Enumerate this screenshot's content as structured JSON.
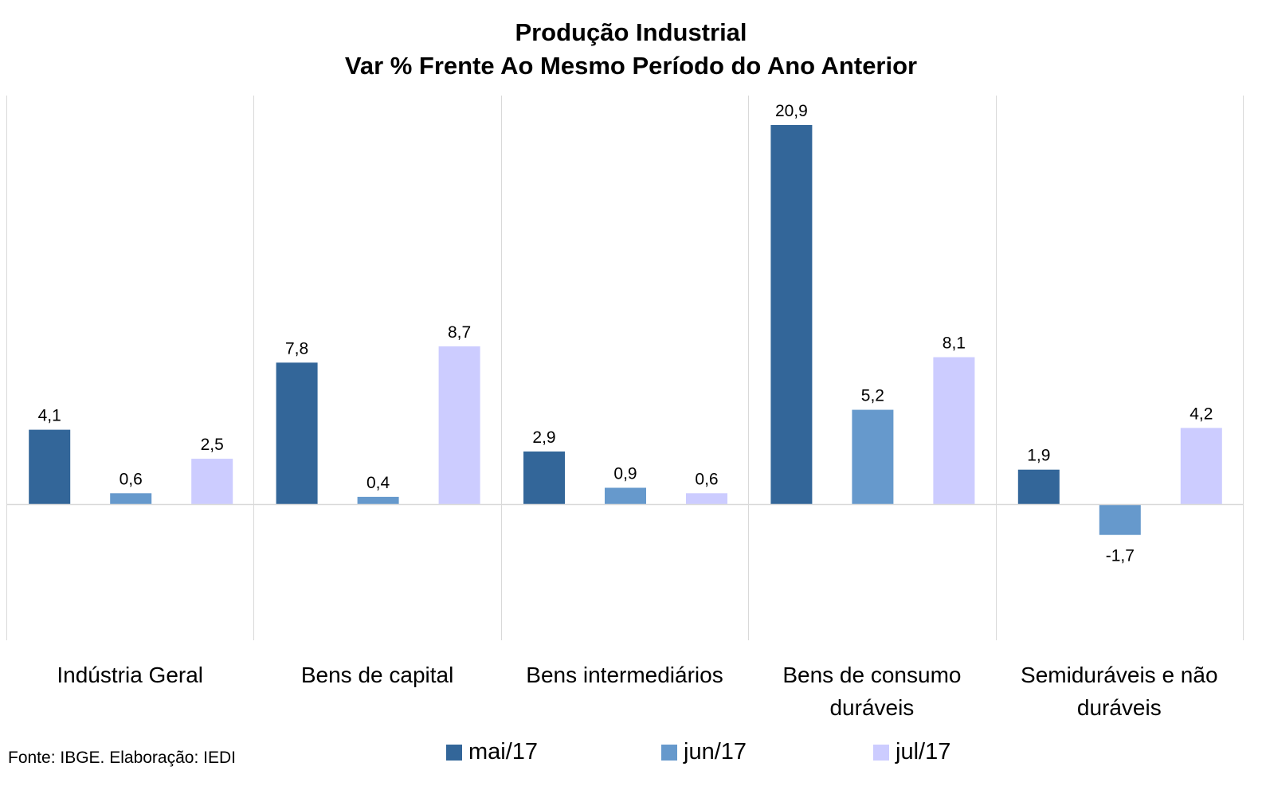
{
  "chart_data": {
    "type": "bar",
    "title": "Produção Industrial",
    "subtitle": "Var % Frente Ao Mesmo Período do Ano Anterior",
    "categories": [
      "Indústria Geral",
      "Bens de capital",
      "Bens intermediários",
      "Bens de consumo duráveis",
      "Semiduráveis e não duráveis"
    ],
    "category_lines": [
      [
        "Indústria Geral"
      ],
      [
        "Bens de capital"
      ],
      [
        "Bens intermediários"
      ],
      [
        "Bens de consumo",
        "duráveis"
      ],
      [
        "Semiduráveis e não",
        "duráveis"
      ]
    ],
    "series": [
      {
        "name": "mai/17",
        "color": "#336699",
        "values": [
          4.1,
          7.8,
          2.9,
          20.9,
          1.9
        ],
        "labels": [
          "4,1",
          "7,8",
          "2,9",
          "20,9",
          "1,9"
        ]
      },
      {
        "name": "jun/17",
        "color": "#6699CC",
        "values": [
          0.6,
          0.4,
          0.9,
          5.2,
          -1.7
        ],
        "labels": [
          "0,6",
          "0,4",
          "0,9",
          "5,2",
          "-1,7"
        ]
      },
      {
        "name": "jul/17",
        "color": "#CCCCFF",
        "values": [
          2.5,
          8.7,
          0.6,
          8.1,
          4.2
        ],
        "labels": [
          "2,5",
          "8,7",
          "0,6",
          "8,1",
          "4,2"
        ]
      }
    ],
    "ylim": [
      -7.5,
      22.5
    ],
    "legend_position": "bottom",
    "grid": false
  },
  "source": "Fonte: IBGE. Elaboração: IEDI"
}
